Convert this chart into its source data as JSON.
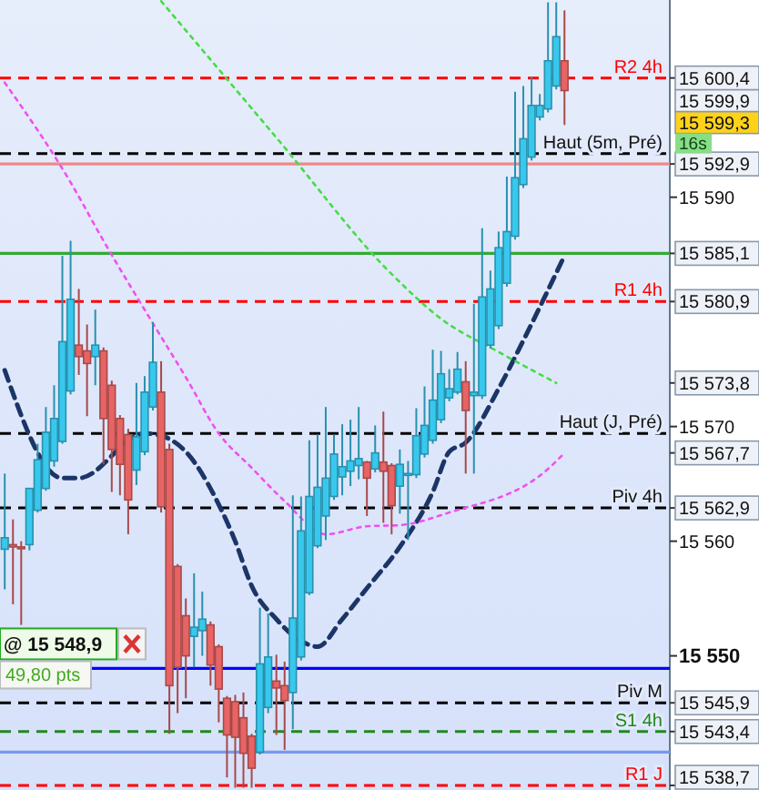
{
  "chart_data": {
    "type": "candlestick",
    "categories": [
      null,
      null,
      null,
      null,
      null,
      null,
      null,
      null,
      null,
      null,
      null,
      null,
      null,
      null,
      null,
      null,
      null,
      null,
      null,
      null,
      null,
      null,
      null,
      null,
      null,
      null,
      null,
      null,
      null,
      null,
      null,
      null,
      null,
      null,
      null,
      null,
      null,
      null,
      null,
      null,
      null,
      null,
      null,
      null,
      null,
      null,
      null,
      null,
      null,
      null,
      null,
      null,
      null,
      null,
      null,
      null,
      null,
      null,
      null,
      null,
      null,
      null,
      null,
      null,
      null,
      null,
      null,
      null,
      null,
      null,
      null,
      null,
      null,
      null,
      null,
      null,
      null,
      null,
      null,
      null,
      null
    ],
    "colors": [
      "#38c8ee",
      "#e86464",
      "#e86464",
      "#38c8ee",
      "#38c8ee",
      "#38c8ee",
      "#38c8ee",
      "#38c8ee",
      "#38c8ee",
      "#e86464",
      "#e86464",
      "#38c8ee",
      "#e86464",
      "#e86464",
      "#e86464",
      "#e86464",
      "#38c8ee",
      "#38c8ee",
      "#38c8ee",
      "#e86464",
      "#e86464",
      "#e86464",
      "#e86464",
      "#38c8ee",
      "#38c8ee",
      "#e86464",
      "#e86464",
      "#e86464",
      "#e86464",
      "#e86464",
      "#e86464",
      "#38c8ee",
      "#38c8ee",
      "#e86464",
      "#e86464",
      "#38c8ee",
      "#38c8ee",
      "#38c8ee",
      "#38c8ee",
      "#38c8ee",
      "#38c8ee",
      "#38c8ee",
      "#38c8ee",
      "#38c8ee",
      "#e86464",
      "#38c8ee",
      "#e86464",
      "#e86464",
      "#38c8ee",
      "#38c8ee",
      "#38c8ee",
      "#38c8ee",
      "#38c8ee",
      "#38c8ee",
      "#38c8ee",
      "#38c8ee",
      "#e86464",
      "#38c8ee",
      "#38c8ee",
      "#38c8ee",
      "#38c8ee",
      "#38c8ee",
      "#38c8ee",
      "#38c8ee",
      "#38c8ee",
      "#38c8ee",
      "#38c8ee",
      "#38c8ee",
      "#e86464",
      null,
      null,
      null,
      null,
      null,
      null,
      null,
      null,
      null,
      null,
      null,
      null
    ],
    "ohlc": [
      [
        15559.3,
        15565.9,
        15555.8,
        15560.3
      ],
      [
        15559.7,
        15561.9,
        15554.5,
        15559.5
      ],
      [
        15559.5,
        15560.0,
        15552.7,
        15559.4
      ],
      [
        15559.7,
        15564.6,
        15559.2,
        15564.6
      ],
      [
        15562.7,
        15568.5,
        15562.5,
        15567.1
      ],
      [
        15564.6,
        15571.7,
        15564.4,
        15569.5
      ],
      [
        15567.0,
        15573.6,
        15566.5,
        15570.7
      ],
      [
        15568.7,
        15584.9,
        15568.5,
        15577.4
      ],
      [
        15573.1,
        15586.2,
        15572.8,
        15581.1
      ],
      [
        15577.1,
        15582.0,
        15574.5,
        15576.1
      ],
      [
        15576.6,
        15578.9,
        15570.9,
        15575.5
      ],
      [
        15576.1,
        15580.2,
        15573.6,
        15577.1
      ],
      [
        15576.6,
        15576.9,
        15566.7,
        15570.7
      ],
      [
        15573.6,
        15574.0,
        15564.3,
        15568.0
      ],
      [
        15570.7,
        15571.0,
        15564.0,
        15566.7
      ],
      [
        15569.3,
        15569.8,
        15560.6,
        15563.6
      ],
      [
        15566.2,
        15573.8,
        15564.9,
        15569.1
      ],
      [
        15567.8,
        15574.4,
        15567.5,
        15573.0
      ],
      [
        15571.7,
        15579.1,
        15571.4,
        15575.6
      ],
      [
        15573.0,
        15575.7,
        15562.5,
        15563.0
      ],
      [
        15568.0,
        15568.5,
        15543.2,
        15547.4
      ],
      [
        15557.8,
        15558.0,
        15545.0,
        15549.0
      ],
      [
        15553.5,
        15555.0,
        15546.3,
        15550.0
      ],
      [
        15551.7,
        15557.2,
        15549.0,
        15552.5
      ],
      [
        15552.2,
        15555.6,
        15550.0,
        15553.2
      ],
      [
        15552.7,
        15553.0,
        15547.4,
        15549.2
      ],
      [
        15550.8,
        15551.0,
        15544.2,
        15547.1
      ],
      [
        15546.3,
        15546.5,
        15539.4,
        15543.1
      ],
      [
        15546.0,
        15546.6,
        15538.5,
        15542.9
      ],
      [
        15544.6,
        15546.8,
        15538.5,
        15541.5
      ],
      [
        15543.0,
        15543.2,
        15538.5,
        15540.2
      ],
      [
        15541.6,
        15554.2,
        15541.4,
        15549.3
      ],
      [
        15545.5,
        15553.7,
        15545.0,
        15549.9
      ],
      [
        15547.8,
        15550.1,
        15543.1,
        15547.2
      ],
      [
        15547.4,
        15549.5,
        15541.8,
        15546.1
      ],
      [
        15546.8,
        15564.0,
        15543.6,
        15553.3
      ],
      [
        15549.9,
        15563.9,
        15549.6,
        15560.9
      ],
      [
        15555.5,
        15568.8,
        15555.3,
        15563.9
      ],
      [
        15559.6,
        15569.3,
        15559.4,
        15564.7
      ],
      [
        15562.2,
        15571.7,
        15560.1,
        15565.5
      ],
      [
        15563.9,
        15569.3,
        15563.6,
        15567.6
      ],
      [
        15565.6,
        15570.2,
        15564.0,
        15566.5
      ],
      [
        15566.1,
        15570.6,
        15564.8,
        15567.0
      ],
      [
        15566.6,
        15571.7,
        15565.4,
        15567.2
      ],
      [
        15566.9,
        15567.0,
        15562.2,
        15565.5
      ],
      [
        15566.3,
        15570.1,
        15566.0,
        15567.7
      ],
      [
        15566.9,
        15571.3,
        15561.6,
        15566.1
      ],
      [
        15566.6,
        15566.8,
        15560.6,
        15563.1
      ],
      [
        15564.8,
        15568.0,
        15562.4,
        15566.7
      ],
      [
        15565.8,
        15567.0,
        15560.1,
        15565.9
      ],
      [
        15565.8,
        15571.6,
        15565.5,
        15569.2
      ],
      [
        15567.6,
        15573.5,
        15567.3,
        15570.1
      ],
      [
        15568.8,
        15576.7,
        15568.5,
        15572.3
      ],
      [
        15570.6,
        15576.6,
        15570.3,
        15574.6
      ],
      [
        15572.5,
        15575.0,
        15572.2,
        15573.3
      ],
      [
        15573.0,
        15576.5,
        15572.8,
        15575.0
      ],
      [
        15573.9,
        15575.7,
        15565.9,
        15571.4
      ],
      [
        15572.7,
        15580.7,
        15565.9,
        15573.0
      ],
      [
        15572.7,
        15587.3,
        15572.4,
        15581.3
      ],
      [
        15577.1,
        15583.6,
        15576.8,
        15582.0
      ],
      [
        15578.8,
        15587.0,
        15578.5,
        15585.6
      ],
      [
        15582.5,
        15591.8,
        15582.2,
        15587.0
      ],
      [
        15586.6,
        15599.2,
        15586.3,
        15591.7
      ],
      [
        15591.1,
        15599.7,
        15590.8,
        15595.1
      ],
      [
        15593.5,
        15600.5,
        15593.2,
        15598.0
      ],
      [
        15597.0,
        15599.0,
        15596.7,
        15598.0
      ],
      [
        15597.7,
        15607.0,
        15597.4,
        15601.9
      ],
      [
        15599.7,
        15607.0,
        15599.4,
        15604.0
      ],
      [
        15601.9,
        15606.3,
        15596.3,
        15599.3
      ],
      null,
      null,
      null,
      null,
      null,
      null,
      null,
      null,
      null,
      null,
      null,
      null
    ],
    "series": [
      {
        "type": "line",
        "color": "#1b3566",
        "line_style": "dashed",
        "values": [
          15574.9,
          null,
          null,
          null,
          null,
          null,
          null,
          15565.5,
          null,
          15565.5,
          null,
          null,
          null,
          null,
          null,
          null,
          null,
          15569.4,
          null,
          15569.2,
          null,
          null,
          15567.8,
          null,
          null,
          null,
          15563.2,
          null,
          15560.0,
          null,
          15556.1,
          null,
          null,
          15553.2,
          null,
          null,
          15551.3,
          null,
          15550.8,
          null,
          null,
          15553.2,
          null,
          null,
          15555.9,
          null,
          null,
          null,
          15559.5,
          null,
          null,
          null,
          15564.3,
          null,
          15567.8,
          null,
          15568.6,
          null,
          null,
          null,
          15573.3,
          null,
          null,
          15577.5,
          null,
          null,
          null,
          null,
          15584.9,
          null,
          null,
          null,
          null,
          null,
          null,
          null,
          null,
          null,
          null,
          null,
          null
        ]
      },
      {
        "type": "line",
        "color": "#f050f0",
        "line_style": "dotted",
        "values": [
          15600.0,
          null,
          null,
          null,
          null,
          null,
          null,
          null,
          15591.3,
          null,
          null,
          null,
          15586.2,
          null,
          null,
          null,
          null,
          null,
          15579.0,
          null,
          null,
          null,
          15574.3,
          null,
          null,
          null,
          15569.4,
          null,
          null,
          null,
          15566.4,
          null,
          null,
          null,
          15563.5,
          null,
          null,
          null,
          null,
          15560.6,
          null,
          null,
          null,
          null,
          15561.3,
          null,
          null,
          null,
          15561.4,
          null,
          null,
          null,
          null,
          null,
          15562.5,
          null,
          null,
          null,
          null,
          null,
          null,
          null,
          null,
          null,
          null,
          null,
          15566.3,
          null,
          15567.7,
          null,
          null,
          null,
          null,
          null,
          null,
          null,
          null,
          null,
          null,
          null,
          null
        ]
      },
      {
        "type": "line",
        "color": "#44dd44",
        "line_style": "dotted",
        "values": [
          null,
          null,
          null,
          null,
          null,
          null,
          null,
          null,
          null,
          null,
          null,
          null,
          null,
          null,
          null,
          null,
          null,
          null,
          null,
          15607.1,
          null,
          null,
          null,
          null,
          null,
          null,
          null,
          null,
          null,
          null,
          null,
          null,
          null,
          15595.2,
          null,
          null,
          null,
          null,
          null,
          null,
          null,
          null,
          null,
          null,
          null,
          null,
          null,
          15583.3,
          null,
          null,
          null,
          null,
          null,
          15579.4,
          null,
          null,
          null,
          null,
          null,
          null,
          15576.5,
          null,
          null,
          null,
          null,
          null,
          null,
          15573.8,
          null,
          null,
          null,
          null,
          null,
          null,
          null,
          null,
          null,
          null,
          null,
          null,
          null
        ]
      }
    ],
    "ylim": [
      15538.3,
      15607.2
    ],
    "yticks": [
      {
        "value": 15600.4,
        "label": "15 600,4"
      },
      {
        "value": 15592.9,
        "label": "15 592,9"
      },
      {
        "value": 15590,
        "label": "15 590"
      },
      {
        "value": 15585.1,
        "label": "15 585,1"
      },
      {
        "value": 15580.9,
        "label": "15 580,9"
      },
      {
        "value": 15573.8,
        "label": "15 573,8"
      },
      {
        "value": 15570,
        "label": "15 570"
      },
      {
        "value": 15567.7,
        "label": "15 567,7"
      },
      {
        "value": 15562.9,
        "label": "15 562,9"
      },
      {
        "value": 15560,
        "label": "15 560"
      },
      {
        "value": 15550,
        "label": "15 550"
      },
      {
        "value": 15545.9,
        "label": "15 545,9"
      },
      {
        "value": 15543.4,
        "label": "15 543,4"
      },
      {
        "value": 15538.7,
        "label": "15 538,7"
      }
    ],
    "ref_lines": [
      {
        "axis": "y",
        "value": 15600.4,
        "label": "R2 4h",
        "color": "#ff0000",
        "line_style": "dashed"
      },
      {
        "axis": "y",
        "value": 15593.8,
        "label": "Haut (5m, Pré)",
        "color": "#000000",
        "line_style": "dashed"
      },
      {
        "axis": "y",
        "value": 15592.9,
        "label": null,
        "color": "#f08888",
        "line_style": "solid"
      },
      {
        "axis": "y",
        "value": 15585.1,
        "label": null,
        "color": "#33aa33",
        "line_style": "solid"
      },
      {
        "axis": "y",
        "value": 15580.9,
        "label": "R1 4h",
        "color": "#ff0000",
        "line_style": "dashed"
      },
      {
        "axis": "y",
        "value": 15569.4,
        "label": "Haut (J, Pré)",
        "color": "#000000",
        "line_style": "dashed"
      },
      {
        "axis": "y",
        "value": 15562.9,
        "label": "Piv 4h",
        "color": "#000000",
        "line_style": "dashed"
      },
      {
        "axis": "y",
        "value": 15548.9,
        "label": null,
        "color": "#0000ff",
        "line_style": "solid"
      },
      {
        "axis": "y",
        "value": 15545.9,
        "label": "Piv M",
        "color": "#000000",
        "line_style": "dashed"
      },
      {
        "axis": "y",
        "value": 15543.4,
        "label": "S1 4h",
        "color": "#228822",
        "line_style": "dashed"
      },
      {
        "axis": "y",
        "value": 15541.6,
        "label": null,
        "color": "#7799ee",
        "line_style": "solid"
      },
      {
        "axis": "y",
        "value": 15538.7,
        "label": "R1 J",
        "color": "#ff0000",
        "line_style": "dashed"
      }
    ],
    "annotations": [
      "15 599,9",
      "15 599,3",
      "16s",
      {
        "text": "@ 15 548,9",
        "y": 15548.9
      },
      "49,80 pts"
    ],
    "grid": false
  }
}
